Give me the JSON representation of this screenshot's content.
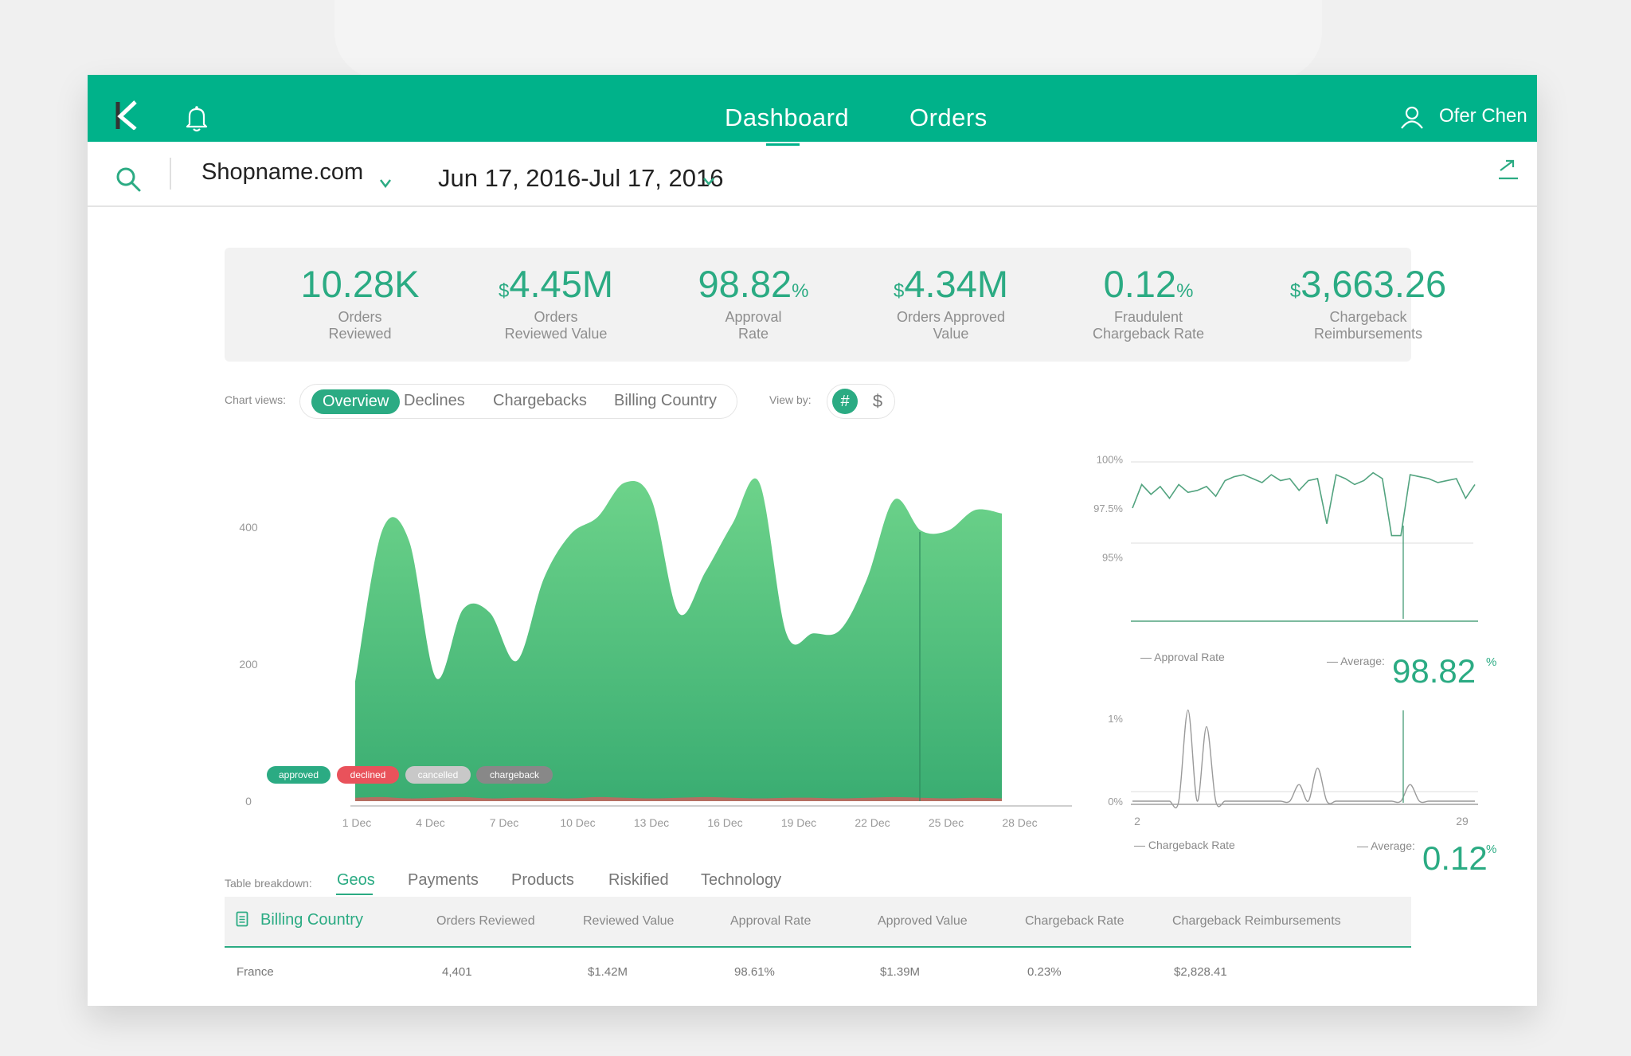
{
  "topbar": {
    "nav": [
      "Dashboard",
      "Orders"
    ],
    "user_name": "Ofer Chen"
  },
  "filters": {
    "shop_name": "Shopname.com",
    "date_range": "Jun 17, 2016-Jul 17, 2016"
  },
  "kpis": [
    {
      "prefix": "",
      "value": "10.28K",
      "suffix": "",
      "label1": "Orders",
      "label2": "Reviewed"
    },
    {
      "prefix": "$",
      "value": "4.45M",
      "suffix": "",
      "label1": "Orders",
      "label2": "Reviewed Value"
    },
    {
      "prefix": "",
      "value": "98.82",
      "suffix": "%",
      "label1": "Approval",
      "label2": "Rate"
    },
    {
      "prefix": "$",
      "value": "4.34M",
      "suffix": "",
      "label1": "Orders Approved",
      "label2": "Value"
    },
    {
      "prefix": "",
      "value": "0.12",
      "suffix": "%",
      "label1": "Fraudulent",
      "label2": "Chargeback Rate"
    },
    {
      "prefix": "$",
      "value": "3,663.26",
      "suffix": "",
      "label1": "Chargeback",
      "label2": "Reimbursements"
    }
  ],
  "chart_views": {
    "label": "Chart views:",
    "items": [
      "Overview",
      "Declines",
      "Chargebacks",
      "Billing Country"
    ],
    "selected": "Overview"
  },
  "view_by": {
    "label": "View by:",
    "options": [
      "#",
      "$"
    ],
    "selected": "#"
  },
  "legend": [
    {
      "label": "approved",
      "color": "#2bab83"
    },
    {
      "label": "declined",
      "color": "#e9525b"
    },
    {
      "label": "cancelled",
      "color": "#c8c8c8"
    },
    {
      "label": "chargeback",
      "color": "#888888"
    }
  ],
  "chart_data": [
    {
      "type": "area",
      "x_ticks": [
        "1 Dec",
        "4 Dec",
        "7 Dec",
        "10 Dec",
        "13 Dec",
        "16 Dec",
        "19 Dec",
        "22 Dec",
        "25 Dec",
        "28 Dec"
      ],
      "y_ticks": [
        "0",
        "200",
        "400"
      ],
      "ylim": [
        0,
        500
      ],
      "series": [
        {
          "name": "approved",
          "color": "#4cc47c",
          "values": [
            175,
            395,
            380,
            180,
            280,
            275,
            205,
            325,
            390,
            415,
            465,
            440,
            275,
            335,
            405,
            465,
            245,
            245,
            250,
            325,
            440,
            395,
            395,
            425,
            420
          ]
        },
        {
          "name": "declined",
          "color": "#e9525b",
          "values": [
            5,
            6,
            4,
            5,
            6,
            4,
            5,
            5,
            4,
            6,
            5,
            4,
            5,
            6,
            5,
            4,
            5,
            5,
            4,
            5,
            6,
            5,
            4,
            5,
            4
          ]
        }
      ]
    },
    {
      "type": "line",
      "y_ticks": [
        "100%",
        "97.5%",
        "95%"
      ],
      "ylim": [
        94.5,
        100.5
      ],
      "series": [
        {
          "name": "Approval Rate",
          "values": [
            97.5,
            98.7,
            98.2,
            98.6,
            98.0,
            98.7,
            98.3,
            98.4,
            98.6,
            98.1,
            98.9,
            99.1,
            99.2,
            99.0,
            98.8,
            99.2,
            98.9,
            99.0,
            98.4,
            98.9,
            99.0,
            96.7,
            99.2,
            99.0,
            98.7,
            98.9,
            99.3,
            99.0,
            96.1,
            96.1,
            99.2,
            99.1,
            99.0,
            98.8,
            98.9,
            99.0,
            98.0,
            98.7
          ]
        }
      ],
      "legend": "— Approval Rate",
      "average_label": "— Average:",
      "average_value": "98.82",
      "average_suffix": "%"
    },
    {
      "type": "line",
      "y_ticks": [
        "1%",
        "0%"
      ],
      "x_ticks": [
        "2",
        "29"
      ],
      "ylim": [
        0,
        1
      ],
      "series": [
        {
          "name": "Chargeback Rate",
          "values": [
            0,
            0,
            0,
            0,
            0,
            0,
            1.1,
            0,
            0.9,
            0,
            0,
            0,
            0,
            0,
            0,
            0,
            0,
            0,
            0.2,
            0,
            0.4,
            0,
            0,
            0,
            0,
            0,
            0,
            0,
            0,
            0,
            0.2,
            0,
            0,
            0,
            0,
            0,
            0,
            0
          ]
        }
      ],
      "legend": "— Chargeback Rate",
      "average_label": "— Average:",
      "average_value": "0.12",
      "average_suffix": "%"
    }
  ],
  "table_breakdown": {
    "label": "Table breakdown:",
    "tabs": [
      "Geos",
      "Payments",
      "Products",
      "Riskified",
      "Technology"
    ],
    "selected": "Geos",
    "columns": [
      "Billing Country",
      "Orders Reviewed",
      "Reviewed Value",
      "Approval Rate",
      "Approved Value",
      "Chargeback Rate",
      "Chargeback Reimbursements"
    ],
    "rows": [
      [
        "France",
        "4,401",
        "$1.42M",
        "98.61%",
        "$1.39M",
        "0.23%",
        "$2,828.41"
      ]
    ]
  }
}
